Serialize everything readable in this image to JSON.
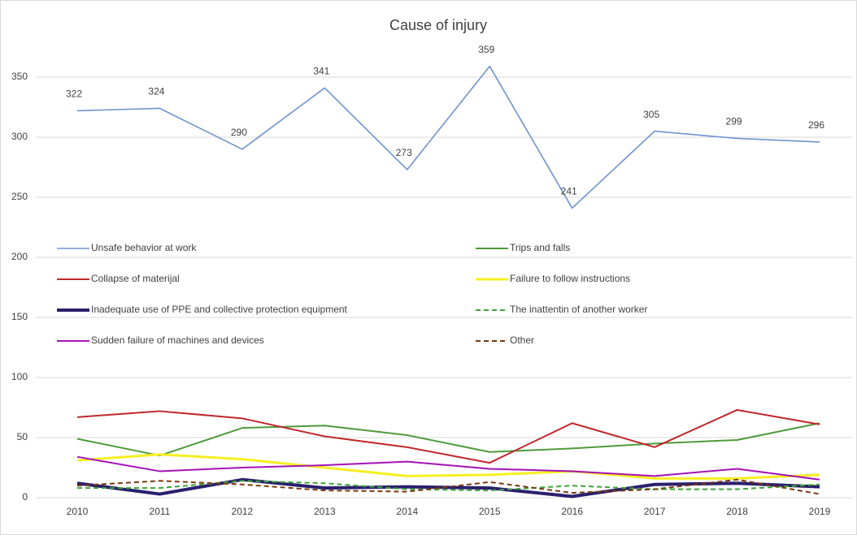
{
  "chart_data": {
    "type": "line",
    "title": "Cause of injury",
    "categories": [
      "2010",
      "2011",
      "2012",
      "2013",
      "2014",
      "2015",
      "2016",
      "2017",
      "2018",
      "2019"
    ],
    "ylim": [
      0,
      400
    ],
    "yticks": [
      0,
      50,
      100,
      150,
      200,
      250,
      300,
      350
    ],
    "grid": true,
    "legend": "center",
    "series": [
      {
        "name": "Unsafe behavior at work",
        "color": "#6f93cf",
        "width": 1.6,
        "dash": false,
        "labels": true,
        "values": [
          322,
          324,
          290,
          341,
          273,
          359,
          241,
          305,
          299,
          296
        ]
      },
      {
        "name": "Trips and falls",
        "color": "#4e9a3a",
        "width": 2,
        "dash": false,
        "values": [
          49,
          35,
          58,
          60,
          52,
          38,
          41,
          45,
          48,
          62
        ]
      },
      {
        "name": "Collapse of materijal",
        "color": "#c0262b",
        "width": 2,
        "dash": false,
        "values": [
          67,
          72,
          66,
          51,
          42,
          29,
          62,
          42,
          73,
          61
        ]
      },
      {
        "name": "Failure to follow instructions",
        "color": "#f5ef20",
        "width": 3,
        "dash": false,
        "values": [
          31,
          36,
          32,
          25,
          18,
          19,
          22,
          16,
          16,
          19
        ]
      },
      {
        "name": "Inadequate use of PPE and collective protection equipment",
        "color": "#2a1f6e",
        "width": 4,
        "dash": false,
        "values": [
          12,
          3,
          15,
          8,
          9,
          8,
          1,
          11,
          12,
          9
        ]
      },
      {
        "name": "The inattentin of another worker",
        "color": "#3fa33a",
        "width": 2,
        "dash": true,
        "values": [
          8,
          8,
          14,
          12,
          7,
          6,
          10,
          7,
          7,
          11
        ]
      },
      {
        "name": "Sudden failure of machines and devices",
        "color": "#a412b5",
        "width": 2,
        "dash": false,
        "values": [
          34,
          22,
          25,
          27,
          30,
          24,
          22,
          18,
          24,
          15
        ]
      },
      {
        "name": "Other",
        "color": "#7a3a10",
        "width": 2,
        "dash": true,
        "values": [
          10,
          14,
          11,
          6,
          5,
          13,
          4,
          7,
          15,
          3
        ]
      }
    ]
  }
}
